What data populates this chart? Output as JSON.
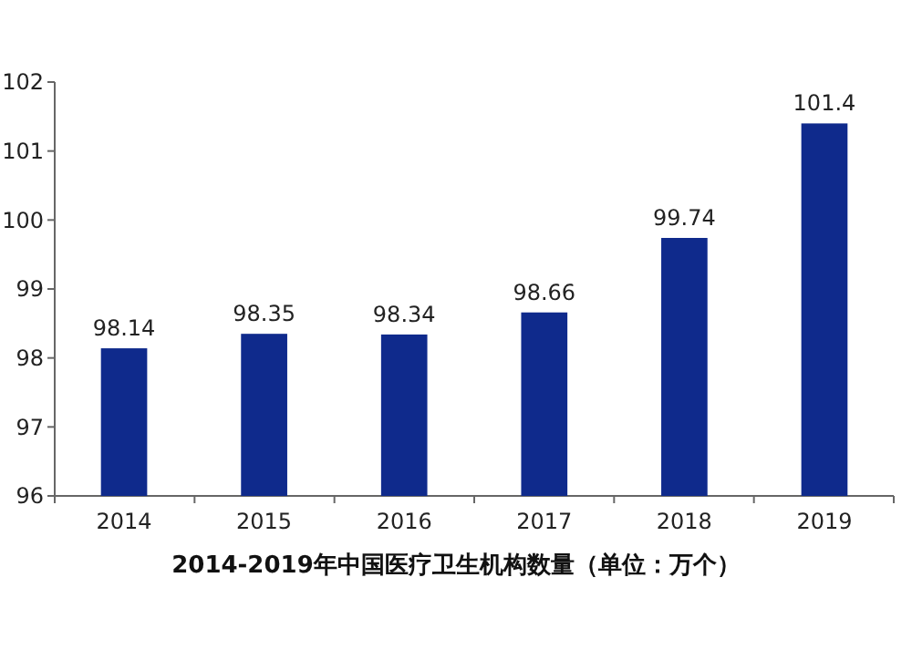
{
  "chart_data": {
    "type": "bar",
    "title": "2014-2019年中国医疗卫生机构数量（单位：万个）",
    "categories": [
      "2014",
      "2015",
      "2016",
      "2017",
      "2018",
      "2019"
    ],
    "values": [
      98.14,
      98.35,
      98.34,
      98.66,
      99.74,
      101.4
    ],
    "value_labels": [
      "98.14",
      "98.35",
      "98.34",
      "98.66",
      "99.74",
      "101.4"
    ],
    "color": "#0f2a8c",
    "ylim": [
      96,
      102
    ],
    "yticks": [
      96,
      97,
      98,
      99,
      100,
      101,
      102
    ],
    "grid": false
  }
}
